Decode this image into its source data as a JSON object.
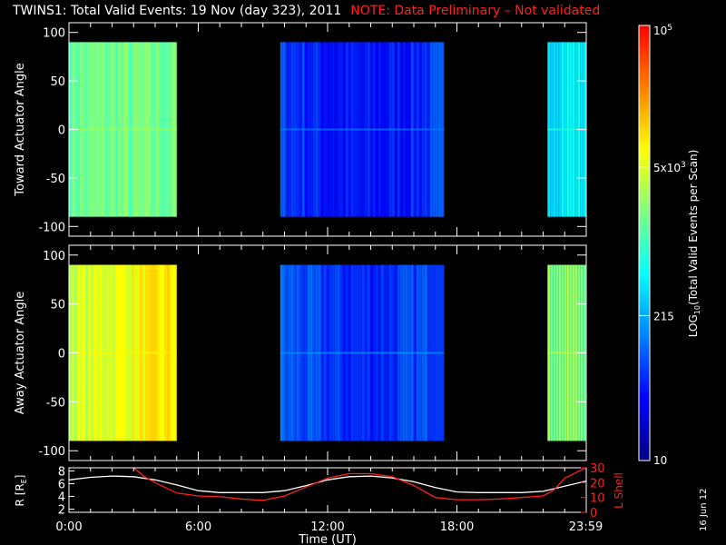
{
  "title": "TWINS1: Total Valid Events: 19 Nov (day 323), 2011",
  "note": "NOTE: Data Preliminary – Not validated",
  "date_stamp": "16 Jun 12",
  "colorbar": {
    "label": "LOG10(Total Valid Events per Scan)",
    "label_main": "LOG",
    "label_sub": "10",
    "label_rest": "(Total Valid Events per Scan)",
    "ticks": [
      {
        "label": "10",
        "value": 10
      },
      {
        "label": "215",
        "value": 215
      },
      {
        "label": "5x10^3",
        "value": 5000
      },
      {
        "label": "10^5",
        "value": 100000
      }
    ],
    "colors": [
      "#000080",
      "#0000ff",
      "#0080ff",
      "#00ffff",
      "#80ff80",
      "#ffff00",
      "#ff8000",
      "#ff0000"
    ],
    "scale": "log"
  },
  "chart_data": [
    {
      "type": "heatmap",
      "name": "toward",
      "ylabel": "Toward Actuator Angle",
      "ylim": [
        -110,
        110
      ],
      "yticks": [
        100,
        50,
        0,
        -50,
        -100
      ],
      "xlim": [
        0,
        24
      ],
      "data_y_range": [
        -90,
        90
      ],
      "blocks": [
        {
          "start": 0.0,
          "end": 5.0,
          "level": 0.55
        },
        {
          "start": 9.8,
          "end": 17.4,
          "level": 0.22
        },
        {
          "start": 22.2,
          "end": 23.98,
          "level": 0.42
        }
      ]
    },
    {
      "type": "heatmap",
      "name": "away",
      "ylabel": "Away Actuator Angle",
      "ylim": [
        -110,
        110
      ],
      "yticks": [
        100,
        50,
        0,
        -50,
        -100
      ],
      "xlim": [
        0,
        24
      ],
      "data_y_range": [
        -90,
        90
      ],
      "blocks": [
        {
          "start": 0.0,
          "end": 5.0,
          "level": 0.66
        },
        {
          "start": 9.8,
          "end": 17.4,
          "level": 0.25
        },
        {
          "start": 22.2,
          "end": 23.98,
          "level": 0.58
        }
      ]
    },
    {
      "type": "line",
      "name": "orbit",
      "xlabel": "Time (UT)",
      "xticks": [
        {
          "label": "0:00",
          "value": 0
        },
        {
          "label": "6:00",
          "value": 6
        },
        {
          "label": "12:00",
          "value": 12
        },
        {
          "label": "18:00",
          "value": 18
        },
        {
          "label": "23:59",
          "value": 23.98
        }
      ],
      "left_axis": {
        "label": "R [RE]",
        "label_main": "R [R",
        "label_sub": "E",
        "label_end": "]",
        "ylim": [
          1.5,
          8.5
        ],
        "ticks": [
          8,
          6,
          4,
          2
        ]
      },
      "right_axis": {
        "label": "L Shell",
        "ylim": [
          0,
          30
        ],
        "ticks": [
          30,
          20,
          10,
          0
        ]
      },
      "series": [
        {
          "name": "R",
          "axis": "left",
          "color": "#ffffff",
          "x": [
            0,
            1,
            2,
            3,
            4,
            5,
            6,
            7,
            8,
            9,
            10,
            11,
            12,
            13,
            14,
            15,
            16,
            17,
            18,
            19,
            20,
            21,
            22,
            23,
            23.98
          ],
          "y": [
            6.6,
            7.0,
            7.2,
            7.1,
            6.6,
            5.8,
            4.9,
            4.6,
            4.6,
            4.6,
            4.9,
            5.7,
            6.6,
            7.1,
            7.2,
            6.9,
            6.3,
            5.4,
            4.7,
            4.6,
            4.6,
            4.6,
            4.8,
            5.6,
            6.4
          ]
        },
        {
          "name": "L Shell",
          "axis": "right",
          "color": "#ff2020",
          "x": [
            3.0,
            3.5,
            4.0,
            5.0,
            6.0,
            7.0,
            8.0,
            9.0,
            10.0,
            11.0,
            12.0,
            13.0,
            14.0,
            15.0,
            16.0,
            17.0,
            18.0,
            19.0,
            20.0,
            21.0,
            22.0,
            22.5,
            23.0,
            23.98
          ],
          "y": [
            30,
            24,
            20,
            13,
            11,
            10.5,
            9,
            8,
            11,
            17,
            23,
            26,
            26,
            24,
            18,
            10,
            8.5,
            8.5,
            9,
            10,
            11,
            15,
            23,
            30
          ]
        }
      ]
    }
  ]
}
